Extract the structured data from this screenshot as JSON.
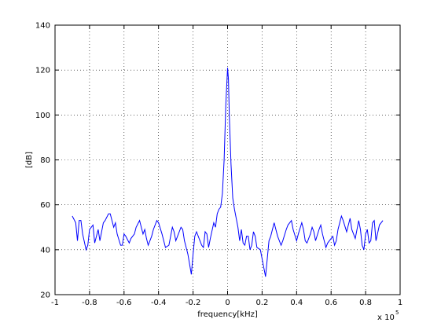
{
  "chart_data": {
    "type": "line",
    "x_label": "frequency[kHz]",
    "y_label": "[dB]",
    "x_multiplier": "x 10",
    "x_exponent": "5",
    "color": "#0000ff",
    "grid": true,
    "xlim": [
      -1,
      1
    ],
    "ylim": [
      20,
      140
    ],
    "xticks": [
      -1,
      -0.8,
      -0.6,
      -0.4,
      -0.2,
      0,
      0.2,
      0.4,
      0.6,
      0.8,
      1
    ],
    "yticks": [
      20,
      40,
      60,
      80,
      100,
      120,
      140
    ],
    "x": [
      -0.9,
      -0.88,
      -0.87,
      -0.86,
      -0.85,
      -0.84,
      -0.82,
      -0.81,
      -0.8,
      -0.78,
      -0.77,
      -0.75,
      -0.74,
      -0.72,
      -0.71,
      -0.69,
      -0.68,
      -0.66,
      -0.65,
      -0.64,
      -0.62,
      -0.61,
      -0.6,
      -0.59,
      -0.57,
      -0.56,
      -0.54,
      -0.53,
      -0.51,
      -0.5,
      -0.49,
      -0.48,
      -0.47,
      -0.46,
      -0.44,
      -0.43,
      -0.41,
      -0.4,
      -0.38,
      -0.37,
      -0.36,
      -0.34,
      -0.33,
      -0.32,
      -0.31,
      -0.3,
      -0.29,
      -0.27,
      -0.26,
      -0.25,
      -0.23,
      -0.21,
      -0.2,
      -0.19,
      -0.18,
      -0.16,
      -0.15,
      -0.14,
      -0.13,
      -0.12,
      -0.11,
      -0.1,
      -0.08,
      -0.07,
      -0.06,
      -0.05,
      -0.04,
      -0.03,
      -0.02,
      -0.01,
      0,
      0.005,
      0.01,
      0.02,
      0.03,
      0.04,
      0.05,
      0.06,
      0.07,
      0.08,
      0.09,
      0.1,
      0.11,
      0.12,
      0.13,
      0.14,
      0.15,
      0.16,
      0.17,
      0.19,
      0.22,
      0.23,
      0.24,
      0.25,
      0.27,
      0.28,
      0.29,
      0.31,
      0.32,
      0.34,
      0.35,
      0.37,
      0.38,
      0.4,
      0.41,
      0.43,
      0.44,
      0.45,
      0.46,
      0.48,
      0.49,
      0.5,
      0.51,
      0.53,
      0.54,
      0.55,
      0.57,
      0.58,
      0.6,
      0.61,
      0.62,
      0.63,
      0.64,
      0.65,
      0.66,
      0.67,
      0.69,
      0.7,
      0.71,
      0.72,
      0.73,
      0.74,
      0.76,
      0.77,
      0.78,
      0.79,
      0.8,
      0.81,
      0.82,
      0.83,
      0.84,
      0.85,
      0.86,
      0.88,
      0.9
    ],
    "values": [
      55,
      52,
      44,
      53,
      53,
      47,
      40,
      42,
      49,
      51,
      43,
      49,
      44,
      52,
      53,
      56,
      56,
      50,
      52,
      47,
      42,
      42,
      47,
      46,
      43,
      45,
      47,
      50,
      53,
      50,
      47,
      49,
      45,
      42,
      46,
      49,
      53,
      52,
      47,
      44,
      41,
      42,
      46,
      50,
      48,
      44,
      46,
      50,
      49,
      44,
      38,
      29,
      38,
      46,
      48,
      44,
      42,
      41,
      48,
      47,
      41,
      45,
      52,
      50,
      56,
      58,
      59,
      65,
      80,
      105,
      121,
      116,
      100,
      78,
      63,
      58,
      54,
      50,
      44,
      49,
      43,
      42,
      46,
      46,
      40,
      42,
      48,
      46,
      41,
      40,
      28,
      36,
      44,
      46,
      52,
      49,
      46,
      42,
      44,
      49,
      51,
      53,
      49,
      44,
      47,
      52,
      49,
      44,
      43,
      47,
      50,
      48,
      44,
      49,
      51,
      47,
      41,
      43,
      45,
      46,
      42,
      44,
      49,
      52,
      55,
      53,
      48,
      51,
      54,
      49,
      47,
      45,
      53,
      49,
      42,
      40,
      47,
      49,
      43,
      44,
      52,
      53,
      44,
      51,
      53
    ]
  }
}
